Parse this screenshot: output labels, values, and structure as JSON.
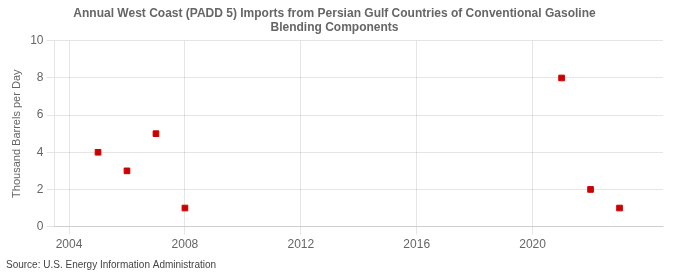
{
  "chart_data": {
    "type": "scatter",
    "title": [
      "Annual West Coast (PADD 5) Imports from Persian Gulf Countries of Conventional Gasoline",
      "Blending Components"
    ],
    "ylabel": "Thousand Barrels per Day",
    "annotations": [
      "Source: U.S. Energy Information Administration"
    ],
    "x": [
      2005,
      2006,
      2007,
      2008,
      2021,
      2022,
      2023
    ],
    "values": [
      4,
      3,
      5,
      1,
      8,
      2,
      1
    ],
    "color": "#cc0000",
    "marker": "square",
    "xlim": [
      2003.5,
      2024.5
    ],
    "ylim": [
      0,
      10
    ],
    "xticks": [
      2004,
      2008,
      2012,
      2016,
      2020
    ],
    "yticks": [
      0,
      2,
      4,
      6,
      8,
      10
    ],
    "grid": true
  }
}
